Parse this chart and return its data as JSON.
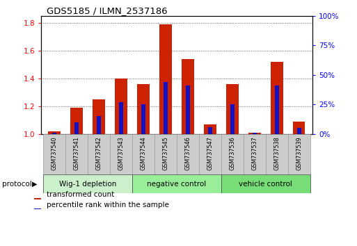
{
  "title": "GDS5185 / ILMN_2537186",
  "samples": [
    "GSM737540",
    "GSM737541",
    "GSM737542",
    "GSM737543",
    "GSM737544",
    "GSM737545",
    "GSM737546",
    "GSM737547",
    "GSM737536",
    "GSM737537",
    "GSM737538",
    "GSM737539"
  ],
  "transformed_counts": [
    1.02,
    1.19,
    1.25,
    1.4,
    1.36,
    1.79,
    1.54,
    1.07,
    1.36,
    1.01,
    1.52,
    1.09
  ],
  "percentile_ranks_pct": [
    1,
    10,
    15,
    27,
    25,
    44,
    41,
    6,
    25,
    1,
    41,
    5
  ],
  "groups": [
    {
      "label": "Wig-1 depletion",
      "start": 0,
      "end": 3
    },
    {
      "label": "negative control",
      "start": 4,
      "end": 7
    },
    {
      "label": "vehicle control",
      "start": 8,
      "end": 11
    }
  ],
  "bar_color_red": "#cc2200",
  "bar_color_blue": "#1111cc",
  "ylim_left": [
    1.0,
    1.85
  ],
  "ylim_right": [
    0,
    100
  ],
  "yticks_left": [
    1.0,
    1.2,
    1.4,
    1.6,
    1.8
  ],
  "yticks_right": [
    0,
    25,
    50,
    75,
    100
  ],
  "ytick_labels_right": [
    "0%",
    "25%",
    "50%",
    "75%",
    "100%"
  ],
  "grid_color": "#666666",
  "bar_width": 0.55,
  "blue_bar_width": 0.18,
  "protocol_label": "protocol",
  "legend_labels": [
    "transformed count",
    "percentile rank within the sample"
  ],
  "group_bg_color_1": "#ccf0cc",
  "group_bg_color_2": "#99ee99",
  "group_bg_color_3": "#77dd77",
  "sample_box_color": "#cccccc",
  "sample_box_edge": "#999999"
}
